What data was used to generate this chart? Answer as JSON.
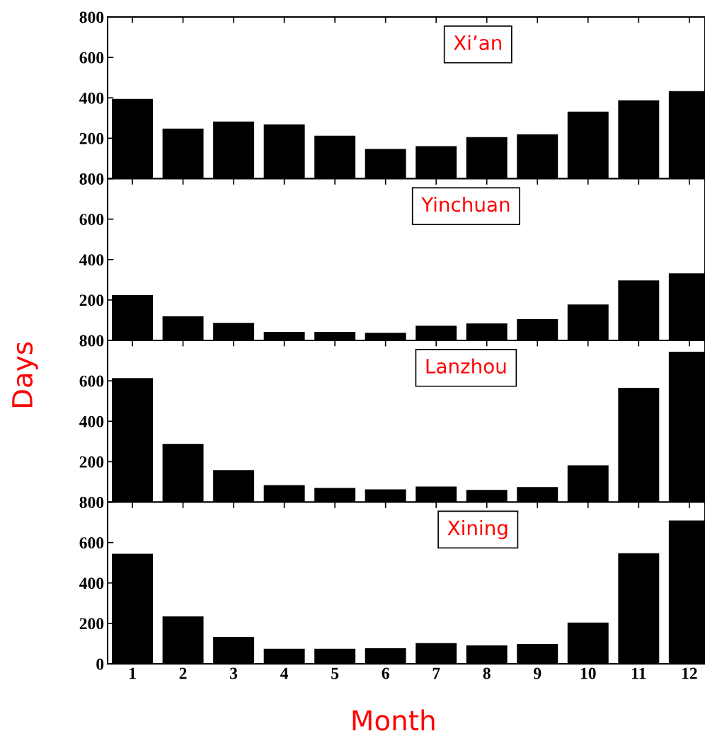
{
  "chart_data": [
    {
      "type": "bar",
      "title": "Xi’an",
      "categories": [
        "1",
        "2",
        "3",
        "4",
        "5",
        "6",
        "7",
        "8",
        "9",
        "10",
        "11",
        "12"
      ],
      "color": "#000000",
      "values": [
        395,
        248,
        283,
        269,
        213,
        147,
        161,
        206,
        220,
        332,
        388,
        433
      ],
      "ylim": [
        0,
        800
      ],
      "yticks": [
        200,
        400,
        600,
        800
      ],
      "tick_labels": "y",
      "grid": false,
      "legend": false
    },
    {
      "type": "bar",
      "title": "Yinchuan",
      "categories": [
        "1",
        "2",
        "3",
        "4",
        "5",
        "6",
        "7",
        "8",
        "9",
        "10",
        "11",
        "12"
      ],
      "color": "#000000",
      "values": [
        224,
        119,
        87,
        42,
        42,
        38,
        73,
        84,
        105,
        178,
        297,
        332
      ],
      "ylim": [
        0,
        800
      ],
      "yticks": [
        200,
        400,
        600,
        800
      ],
      "tick_labels": "y",
      "grid": false,
      "legend": false
    },
    {
      "type": "bar",
      "title": "Lanzhou",
      "ylabel": "Days",
      "categories": [
        "1",
        "2",
        "3",
        "4",
        "5",
        "6",
        "7",
        "8",
        "9",
        "10",
        "11",
        "12"
      ],
      "color": "#000000",
      "values": [
        614,
        288,
        158,
        84,
        70,
        63,
        77,
        60,
        74,
        182,
        565,
        744
      ],
      "ylim": [
        0,
        800
      ],
      "yticks": [
        200,
        400,
        600,
        800
      ],
      "tick_labels": "y",
      "grid": false,
      "legend": false
    },
    {
      "type": "bar",
      "title": "Xining",
      "xlabel": "Month",
      "categories": [
        "1",
        "2",
        "3",
        "4",
        "5",
        "6",
        "7",
        "8",
        "9",
        "10",
        "11",
        "12"
      ],
      "color": "#000000",
      "values": [
        544,
        235,
        133,
        74,
        74,
        77,
        102,
        91,
        98,
        204,
        547,
        709
      ],
      "ylim": [
        0,
        800
      ],
      "yticks": [
        0,
        200,
        400,
        600,
        800
      ],
      "grid": false,
      "legend": false
    }
  ]
}
